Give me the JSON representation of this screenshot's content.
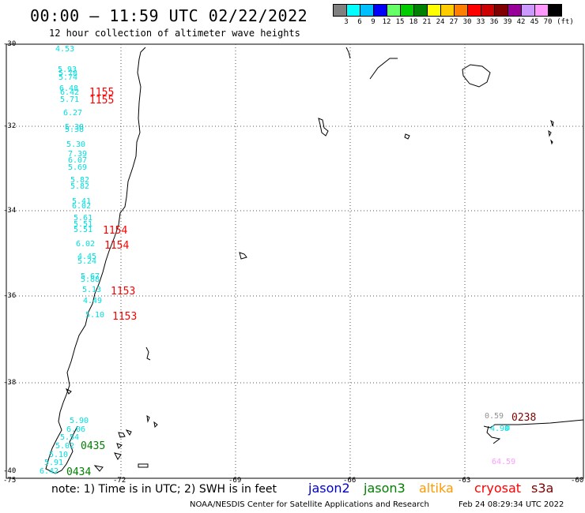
{
  "header": {
    "title": "00:00 – 11:59 UTC 02/22/2022",
    "subtitle": "12 hour collection of altimeter wave heights"
  },
  "legend": {
    "colors": [
      "#808080",
      "#00ffff",
      "#00bfff",
      "#0000ff",
      "#66ff66",
      "#00cc00",
      "#008000",
      "#ffff00",
      "#ffcc00",
      "#ff8000",
      "#ff0000",
      "#cc0000",
      "#800000",
      "#990099",
      "#cc99ff",
      "#ff99ff",
      "#000000"
    ],
    "labels": [
      "3",
      "6",
      "9",
      "12",
      "15",
      "18",
      "21",
      "24",
      "27",
      "30",
      "33",
      "36",
      "39",
      "42",
      "45",
      "70"
    ],
    "unit": "(ft)"
  },
  "axes": {
    "lat_labels": [
      "-30",
      "-32",
      "-34",
      "-36",
      "-38",
      "-40"
    ],
    "lon_labels": [
      "-75",
      "-72",
      "-69",
      "-66",
      "-63",
      "-60"
    ]
  },
  "tracks": [
    {
      "satellite": "cyan",
      "color": "#00e0e0",
      "values": [
        "4.53",
        "5.93",
        "5.78",
        "5.74",
        "6.48",
        "6.42",
        "5.71",
        "6.27",
        "5.38",
        "5.38",
        "5.30",
        "7.39",
        "6.07",
        "5.69",
        "5.82",
        "5.82",
        "5.41",
        "6.02",
        "5.61",
        "5.51",
        "5.51",
        "6.02",
        "4.45",
        "5.24",
        "5.67",
        "5.88",
        "5.13",
        "4.49",
        "5.10"
      ]
    },
    {
      "satellite": "cyan-south",
      "color": "#00e0e0",
      "values": [
        "5.90",
        "6.06",
        "5.54",
        "5.02",
        "5.10",
        "5.91",
        "6.42"
      ]
    },
    {
      "satellite": "cyan-east",
      "color": "#00e0e0",
      "values": [
        "4.98"
      ]
    },
    {
      "satellite": "grey-east",
      "color": "#909090",
      "values": [
        "0.59"
      ]
    },
    {
      "satellite": "pink-east",
      "color": "#ff99ff",
      "values": [
        "64.59"
      ]
    }
  ],
  "time_labels": [
    {
      "text": "1155",
      "color": "#ff0000"
    },
    {
      "text": "1155",
      "color": "#ff0000"
    },
    {
      "text": "1154",
      "color": "#ff0000"
    },
    {
      "text": "1154",
      "color": "#ff0000"
    },
    {
      "text": "1153",
      "color": "#ff0000"
    },
    {
      "text": "1153",
      "color": "#ff0000"
    },
    {
      "text": "0435",
      "color": "#008000"
    },
    {
      "text": "0434",
      "color": "#008000"
    },
    {
      "text": "0238",
      "color": "#800000"
    }
  ],
  "footer": {
    "note": "note:  1) Time is in UTC; 2) SWH is in feet",
    "satellites": [
      {
        "name": "jason2",
        "color": "#0000cc"
      },
      {
        "name": "jason3",
        "color": "#008000"
      },
      {
        "name": "altika",
        "color": "#ff9900"
      },
      {
        "name": "cryosat",
        "color": "#ff0000"
      },
      {
        "name": "s3a",
        "color": "#800000"
      }
    ],
    "credit": "NOAA/NESDIS Center for Satellite Applications and Research",
    "timestamp": "Feb 24 08:29:34 UTC 2022"
  }
}
